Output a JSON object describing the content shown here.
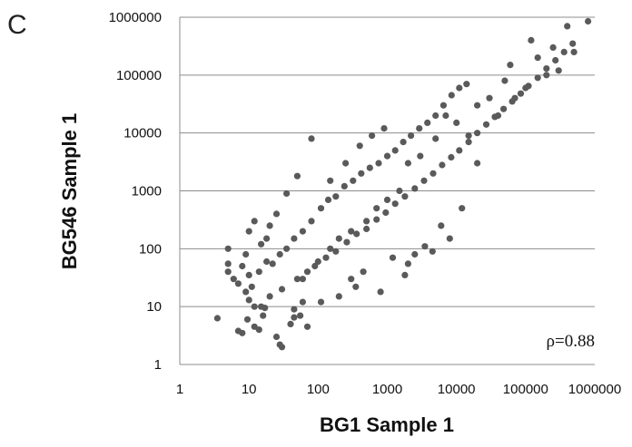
{
  "panel_label": "C",
  "chart_data": {
    "type": "scatter",
    "xlabel": "BG1 Sample 1",
    "ylabel": "BG546 Sample 1",
    "xscale": "log",
    "yscale": "log",
    "xlim": [
      1,
      1000000
    ],
    "ylim": [
      1,
      1000000
    ],
    "x_ticks": [
      "1",
      "10",
      "100",
      "1000",
      "10000",
      "100000",
      "1000000"
    ],
    "y_ticks": [
      "1",
      "10",
      "100",
      "1000",
      "10000",
      "100000",
      "1000000"
    ],
    "grid": "horizontal",
    "annotation": "ρ=0.88",
    "point_color": "#5a5a5a",
    "points": [
      [
        3.5,
        6.3
      ],
      [
        7,
        3.8
      ],
      [
        8,
        3.5
      ],
      [
        9.5,
        6
      ],
      [
        12,
        4.5
      ],
      [
        14,
        4
      ],
      [
        16,
        7
      ],
      [
        17,
        9.5
      ],
      [
        12,
        10
      ],
      [
        10,
        13
      ],
      [
        25,
        3
      ],
      [
        28,
        2.2
      ],
      [
        30,
        2
      ],
      [
        40,
        5
      ],
      [
        45,
        6.5
      ],
      [
        55,
        7
      ],
      [
        70,
        4.5
      ],
      [
        45,
        9
      ],
      [
        60,
        12
      ],
      [
        110,
        12
      ],
      [
        200,
        15
      ],
      [
        300,
        30
      ],
      [
        350,
        22
      ],
      [
        450,
        40
      ],
      [
        800,
        18
      ],
      [
        1200,
        70
      ],
      [
        1800,
        35
      ],
      [
        2000,
        55
      ],
      [
        2500,
        80
      ],
      [
        3500,
        110
      ],
      [
        4500,
        90
      ],
      [
        8000,
        150
      ],
      [
        6000,
        250
      ],
      [
        12000,
        500
      ],
      [
        15000,
        9000
      ],
      [
        20000,
        3000
      ],
      [
        70000,
        40000
      ],
      [
        200000,
        100000
      ],
      [
        400000,
        700000
      ],
      [
        800000,
        850000
      ],
      [
        500000,
        250000
      ],
      [
        300000,
        120000
      ],
      [
        100000,
        60000
      ],
      [
        250000,
        300000
      ],
      [
        150000,
        200000
      ],
      [
        120000,
        400000
      ],
      [
        60000,
        150000
      ],
      [
        30000,
        40000
      ],
      [
        40000,
        20000
      ],
      [
        50000,
        80000
      ],
      [
        20000,
        30000
      ],
      [
        10000,
        15000
      ],
      [
        7000,
        20000
      ],
      [
        5000,
        8000
      ],
      [
        3000,
        4000
      ],
      [
        2000,
        3000
      ],
      [
        1500,
        1000
      ],
      [
        1000,
        700
      ],
      [
        700,
        500
      ],
      [
        500,
        300
      ],
      [
        300,
        200
      ],
      [
        200,
        150
      ],
      [
        150,
        100
      ],
      [
        100,
        60
      ],
      [
        70,
        40
      ],
      [
        50,
        30
      ],
      [
        30,
        20
      ],
      [
        20,
        15
      ],
      [
        15,
        10
      ],
      [
        80,
        8000
      ],
      [
        150,
        1500
      ],
      [
        250,
        3000
      ],
      [
        400,
        6000
      ],
      [
        600,
        9000
      ],
      [
        900,
        12000
      ],
      [
        50,
        1800
      ],
      [
        35,
        900
      ],
      [
        25,
        400
      ],
      [
        20,
        250
      ],
      [
        18,
        150
      ],
      [
        5,
        40
      ],
      [
        5,
        55
      ],
      [
        5,
        100
      ],
      [
        6,
        30
      ],
      [
        7,
        25
      ],
      [
        8,
        50
      ],
      [
        9,
        80
      ],
      [
        10,
        200
      ],
      [
        12,
        300
      ],
      [
        15,
        120
      ],
      [
        10,
        35
      ],
      [
        9,
        18
      ],
      [
        11,
        22
      ],
      [
        14,
        40
      ],
      [
        18,
        60
      ],
      [
        22,
        55
      ],
      [
        28,
        80
      ],
      [
        35,
        100
      ],
      [
        45,
        150
      ],
      [
        60,
        200
      ],
      [
        80,
        300
      ],
      [
        110,
        500
      ],
      [
        140,
        700
      ],
      [
        180,
        800
      ],
      [
        240,
        1200
      ],
      [
        320,
        1500
      ],
      [
        420,
        2000
      ],
      [
        560,
        2500
      ],
      [
        750,
        3000
      ],
      [
        1000,
        4000
      ],
      [
        1300,
        5000
      ],
      [
        1700,
        7000
      ],
      [
        2200,
        9000
      ],
      [
        2900,
        12000
      ],
      [
        3800,
        15000
      ],
      [
        5000,
        20000
      ],
      [
        6500,
        30000
      ],
      [
        8500,
        45000
      ],
      [
        11000,
        60000
      ],
      [
        14000,
        70000
      ],
      [
        60,
        30
      ],
      [
        90,
        50
      ],
      [
        130,
        70
      ],
      [
        180,
        90
      ],
      [
        260,
        130
      ],
      [
        360,
        180
      ],
      [
        500,
        220
      ],
      [
        700,
        320
      ],
      [
        950,
        420
      ],
      [
        1300,
        600
      ],
      [
        1800,
        800
      ],
      [
        2500,
        1100
      ],
      [
        3400,
        1500
      ],
      [
        4600,
        2000
      ],
      [
        6200,
        2800
      ],
      [
        8400,
        3800
      ],
      [
        11000,
        5000
      ],
      [
        15000,
        7000
      ],
      [
        20000,
        10000
      ],
      [
        27000,
        14000
      ],
      [
        36000,
        19000
      ],
      [
        48000,
        26000
      ],
      [
        64000,
        35000
      ],
      [
        85000,
        48000
      ],
      [
        110000,
        65000
      ],
      [
        150000,
        90000
      ],
      [
        200000,
        130000
      ],
      [
        270000,
        180000
      ],
      [
        360000,
        250000
      ],
      [
        480000,
        350000
      ]
    ]
  }
}
